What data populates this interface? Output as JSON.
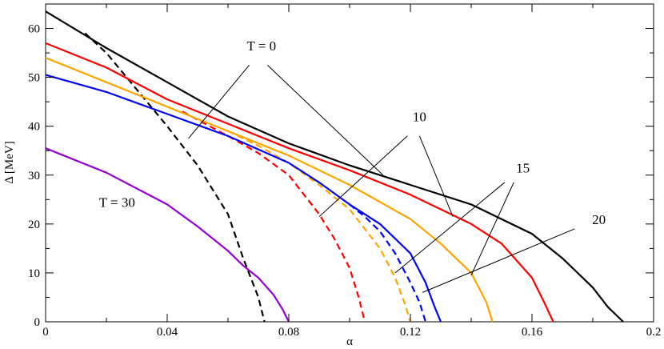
{
  "chart_data": {
    "type": "line",
    "xlabel": "α",
    "ylabel": "Δ [MeV]",
    "xlim": [
      0,
      0.2
    ],
    "ylim": [
      0,
      65
    ],
    "x_ticks": [
      0,
      0.04,
      0.08,
      0.12,
      0.16,
      0.2
    ],
    "x_tick_labels": [
      "0",
      "0.04",
      "0.08",
      "0.12",
      "0.16",
      "0.2"
    ],
    "y_ticks": [
      0,
      10,
      20,
      30,
      40,
      50,
      60
    ],
    "y_tick_labels": [
      "0",
      "10",
      "20",
      "30",
      "40",
      "50",
      "60"
    ],
    "grid": false,
    "legend": "none",
    "series": [
      {
        "color": "#000000",
        "style": "solid",
        "x": [
          0,
          0.02,
          0.04,
          0.06,
          0.08,
          0.1,
          0.12,
          0.14,
          0.16,
          0.17,
          0.18,
          0.185,
          0.19
        ],
        "y": [
          63.5,
          56,
          49,
          42,
          36.5,
          32,
          28,
          24,
          18,
          13,
          7,
          3,
          0
        ]
      },
      {
        "color": "#000000",
        "style": "dashed",
        "x": [
          0.013,
          0.02,
          0.03,
          0.04,
          0.05,
          0.06,
          0.065,
          0.07,
          0.072
        ],
        "y": [
          59,
          55,
          47.5,
          40,
          32,
          22,
          13,
          5,
          0
        ]
      },
      {
        "color": "#ff0000",
        "style": "solid",
        "x": [
          0,
          0.02,
          0.04,
          0.06,
          0.08,
          0.1,
          0.12,
          0.14,
          0.15,
          0.16,
          0.164,
          0.167
        ],
        "y": [
          57,
          52,
          45.5,
          40.5,
          35.5,
          31,
          26,
          20,
          16,
          9,
          4,
          0
        ]
      },
      {
        "color": "#ff0000",
        "style": "dashed",
        "x": [
          0.045,
          0.06,
          0.07,
          0.08,
          0.09,
          0.095,
          0.1,
          0.103,
          0.105
        ],
        "y": [
          43,
          38,
          34.5,
          30,
          22,
          17,
          11,
          5,
          0
        ]
      },
      {
        "color": "#ffa500",
        "style": "solid",
        "x": [
          0,
          0.02,
          0.04,
          0.06,
          0.08,
          0.1,
          0.12,
          0.13,
          0.14,
          0.145,
          0.147
        ],
        "y": [
          54,
          49,
          44,
          39,
          34,
          28,
          21,
          16,
          10,
          4,
          0
        ]
      },
      {
        "color": "#ffa500",
        "style": "dashed",
        "x": [
          0.06,
          0.07,
          0.08,
          0.09,
          0.1,
          0.11,
          0.115,
          0.118,
          0.12
        ],
        "y": [
          39,
          36,
          32.5,
          28,
          23,
          15,
          9,
          4,
          0
        ]
      },
      {
        "color": "#0000ff",
        "style": "solid",
        "x": [
          0,
          0.02,
          0.04,
          0.06,
          0.08,
          0.09,
          0.1,
          0.11,
          0.12,
          0.125,
          0.128,
          0.13
        ],
        "y": [
          50.5,
          47,
          42.5,
          38,
          32.5,
          28.5,
          24,
          20,
          14,
          8,
          3,
          0
        ]
      },
      {
        "color": "#0000ff",
        "style": "dashed",
        "x": [
          0.1,
          0.105,
          0.11,
          0.115,
          0.12,
          0.123,
          0.125
        ],
        "y": [
          24,
          21.5,
          18.5,
          14,
          8,
          4,
          0
        ]
      },
      {
        "color": "#9400d3",
        "style": "solid",
        "x": [
          0,
          0.02,
          0.04,
          0.05,
          0.06,
          0.065,
          0.07,
          0.075,
          0.078,
          0.08
        ],
        "y": [
          35.5,
          30.5,
          24,
          19.5,
          14.5,
          11.5,
          9,
          5.5,
          2.5,
          0
        ]
      }
    ],
    "annotations": [
      {
        "text": "T = 0",
        "x": 0.071,
        "y": 55.5,
        "lines": [
          [
            0.067,
            52.5,
            0.047,
            37.5
          ],
          [
            0.073,
            52.5,
            0.111,
            30
          ]
        ]
      },
      {
        "text": "10",
        "x": 0.123,
        "y": 41,
        "lines": [
          [
            0.119,
            38,
            0.09,
            21.5
          ],
          [
            0.123,
            38,
            0.134,
            21.5
          ]
        ]
      },
      {
        "text": "15",
        "x": 0.157,
        "y": 30.5,
        "lines": [
          [
            0.151,
            28.5,
            0.115,
            10
          ],
          [
            0.154,
            28.5,
            0.14,
            9.5
          ]
        ]
      },
      {
        "text": "20",
        "x": 0.182,
        "y": 20,
        "lines": [
          [
            0.174,
            19,
            0.124,
            6
          ]
        ]
      },
      {
        "text": "T = 30",
        "x": 0.0235,
        "y": 23.5
      }
    ]
  }
}
